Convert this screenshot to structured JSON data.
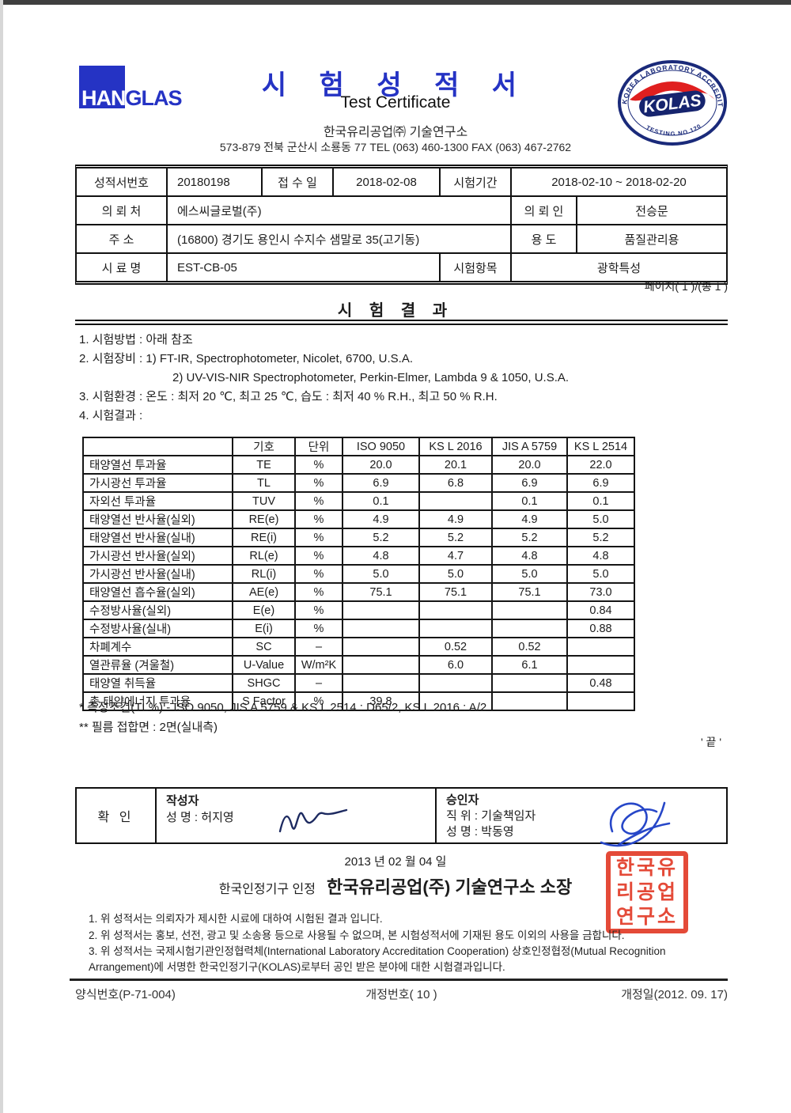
{
  "header": {
    "logo_han": "HAN",
    "logo_glas": "GLAS",
    "title_ko": "시 험 성 적 서",
    "title_en": "Test Certificate",
    "org": "한국유리공업㈜ 기술연구소",
    "address": "573-879 전북 군산시 소룡동 77 TEL (063) 460-1300 FAX (063) 467-2762",
    "kolas_ring_text": "KOREA LABORATORY ACCREDITION SCHEME",
    "kolas_name": "KOLAS",
    "kolas_bottom_text": "TESTING   NO.120"
  },
  "info": {
    "report_no_label": "성적서번호",
    "report_no": "20180198",
    "receipt_label": "접 수 일",
    "receipt_date": "2018-02-08",
    "period_label": "시험기간",
    "period": "2018-02-10 ~ 2018-02-20",
    "client_label": "의 뢰 처",
    "client": "에스씨글로벌(주)",
    "requester_label": "의 뢰 인",
    "requester": "전승문",
    "address_label": "주    소",
    "address": "(16800) 경기도 용인시 수지수 샘말로 35(고기동)",
    "use_label": "용    도",
    "use": "품질관리용",
    "sample_label": "시 료 명",
    "sample": "EST-CB-05",
    "item_label": "시험항목",
    "item": "광학특성"
  },
  "page_indicator": "페이지( 1 )/(총 1 )",
  "results": {
    "heading": "시 험 결 과",
    "method": "1. 시험방법 : 아래 참조",
    "equipment1": "2. 시험장비 : 1) FT-IR, Spectrophotometer, Nicolet, 6700, U.S.A.",
    "equipment2": "2) UV-VIS-NIR Spectrophotometer, Perkin-Elmer, Lambda 9 & 1050, U.S.A.",
    "environment": "3. 시험환경 : 온도 : 최저 20 ℃, 최고 25 ℃, 습도 : 최저 40 % R.H., 최고 50 % R.H.",
    "result_label": "4. 시험결과 :",
    "table": {
      "headers": [
        "",
        "기호",
        "단위",
        "ISO 9050",
        "KS L 2016",
        "JIS A 5759",
        "KS L 2514"
      ],
      "rows": [
        [
          "태양열선 투과율",
          "TE",
          "%",
          "20.0",
          "20.1",
          "20.0",
          "22.0"
        ],
        [
          "가시광선 투과율",
          "TL",
          "%",
          "6.9",
          "6.8",
          "6.9",
          "6.9"
        ],
        [
          "자외선  투과율",
          "TUV",
          "%",
          "0.1",
          "",
          "0.1",
          "0.1"
        ],
        [
          "태양열선 반사율(실외)",
          "RE(e)",
          "%",
          "4.9",
          "4.9",
          "4.9",
          "5.0"
        ],
        [
          "태양열선 반사율(실내)",
          "RE(i)",
          "%",
          "5.2",
          "5.2",
          "5.2",
          "5.2"
        ],
        [
          "가시광선 반사율(실외)",
          "RL(e)",
          "%",
          "4.8",
          "4.7",
          "4.8",
          "4.8"
        ],
        [
          "가시광선 반사율(실내)",
          "RL(i)",
          "%",
          "5.0",
          "5.0",
          "5.0",
          "5.0"
        ],
        [
          "태양열선 흡수율(실외)",
          "AE(e)",
          "%",
          "75.1",
          "75.1",
          "75.1",
          "73.0"
        ],
        [
          "수정방사율(실외)",
          "E(e)",
          "%",
          "",
          "",
          "",
          "0.84"
        ],
        [
          "수정방사율(실내)",
          "E(i)",
          "%",
          "",
          "",
          "",
          "0.88"
        ],
        [
          "차폐계수",
          "SC",
          "–",
          "",
          "0.52",
          "0.52",
          ""
        ],
        [
          "열관류율 (겨울철)",
          "U-Value",
          "W/m²K",
          "",
          "6.0",
          "6.1",
          ""
        ],
        [
          "태양열 취득율",
          "SHGC",
          "–",
          "",
          "",
          "",
          "0.48"
        ],
        [
          "총 태양에너지 투과율",
          "S Factor",
          "%",
          "39.8",
          "",
          "",
          ""
        ]
      ]
    }
  },
  "footnotes": {
    "line1": "* 측정조건(TL%) - ISO 9050, JIS A 5759 & KS L 2514 : D65/2, KS L 2016 : A/2",
    "line2": "** 필름 접합면 : 2면(실내측)"
  },
  "end_mark": "' 끝 '",
  "confirmation": {
    "confirm_label": "확 인",
    "writer_title": "작성자",
    "writer_name": "성 명 : 허지영",
    "approver_title": "승인자",
    "approver_position": "직 위 : 기술책임자",
    "approver_name": "성 명 : 박동영"
  },
  "issue": {
    "date": "2013 년 02 월 04 일",
    "accreditation": "한국인정기구 인정",
    "issuer": "한국유리공업(주) 기술연구소 소장"
  },
  "seal_rows": [
    "한국유",
    "리공업",
    "연구소"
  ],
  "notes": [
    "1. 위 성적서는 의뢰자가 제시한 시료에 대하여 시험된 결과 입니다.",
    "2. 위 성적서는 홍보, 선전, 광고 및 소송용 등으로 사용될 수 없으며, 본 시험성적서에 기재된 용도 이외의 사용을 금합니다.",
    "3. 위 성적서는 국제시험기관인정협력체(International Laboratory Accreditation Cooperation) 상호인정협정(Mutual Recognition Arrangement)에 서명한 한국인정기구(KOLAS)로부터 공인 받은 분야에 대한 시험결과입니다."
  ],
  "footer": {
    "form_no": "양식번호(P-71-004)",
    "revision_no": "개정번호( 10 )",
    "revision_date": "개정일(2012. 09. 17)"
  },
  "colors": {
    "accent_blue": "#2533c4",
    "kolas_navy": "#1a2a7a",
    "kolas_red": "#e01f1f",
    "seal_red": "#e23b28",
    "signature_blue": "#2747c8"
  }
}
